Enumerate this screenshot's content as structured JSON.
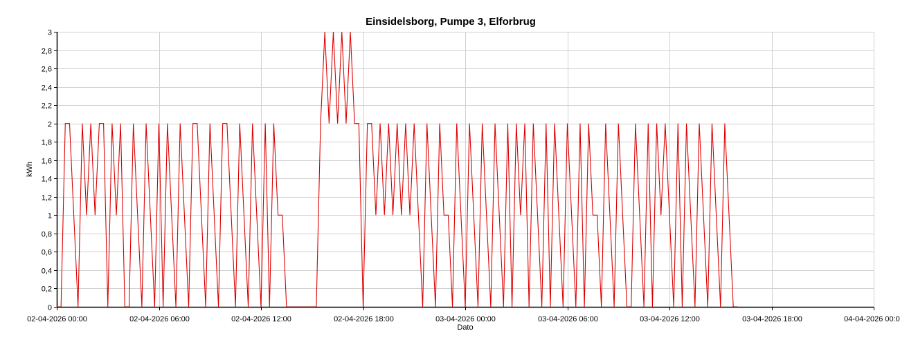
{
  "chart_data": {
    "type": "line",
    "title": "Einsidelsborg, Pumpe 3, Elforbrug",
    "xlabel": "Dato",
    "ylabel": "kWh",
    "ylim": [
      0,
      3
    ],
    "xlim": [
      "02-04-2026 00:00",
      "04-04-2026 00:00"
    ],
    "y_ticks": [
      "0",
      "0,2",
      "0,4",
      "0,6",
      "0,8",
      "1",
      "1,2",
      "1,4",
      "1,6",
      "1,8",
      "2",
      "2,2",
      "2,4",
      "2,6",
      "2,8",
      "3"
    ],
    "x_ticks": [
      "02-04-2026 00:00",
      "02-04-2026 06:00",
      "02-04-2026 12:00",
      "02-04-2026 18:00",
      "03-04-2026 00:00",
      "03-04-2026 06:00",
      "03-04-2026 12:00",
      "03-04-2026 18:00",
      "04-04-2026 00:00"
    ],
    "grid": true,
    "legend": "none",
    "colors": {
      "series": "#dd0000",
      "grid": "#d0d0d0",
      "axis": "#000000"
    },
    "series": [
      {
        "x": [
          "02-04-2026 00:00",
          "02-04-2026 00:15",
          "02-04-2026 00:30",
          "02-04-2026 00:45",
          "02-04-2026 01:00",
          "02-04-2026 01:15",
          "02-04-2026 01:30",
          "02-04-2026 01:45",
          "02-04-2026 02:00",
          "02-04-2026 02:15",
          "02-04-2026 02:30",
          "02-04-2026 02:45",
          "02-04-2026 03:00",
          "02-04-2026 03:15",
          "02-04-2026 03:30",
          "02-04-2026 03:45",
          "02-04-2026 04:00",
          "02-04-2026 04:15",
          "02-04-2026 04:30",
          "02-04-2026 04:45",
          "02-04-2026 05:00",
          "02-04-2026 05:15",
          "02-04-2026 05:30",
          "02-04-2026 05:45",
          "02-04-2026 06:00",
          "02-04-2026 06:15",
          "02-04-2026 06:30",
          "02-04-2026 06:45",
          "02-04-2026 07:00",
          "02-04-2026 07:15",
          "02-04-2026 07:30",
          "02-04-2026 07:45",
          "02-04-2026 08:00",
          "02-04-2026 08:15",
          "02-04-2026 08:30",
          "02-04-2026 08:45",
          "02-04-2026 09:00",
          "02-04-2026 09:15",
          "02-04-2026 09:30",
          "02-04-2026 09:45",
          "02-04-2026 10:00",
          "02-04-2026 10:15",
          "02-04-2026 10:30",
          "02-04-2026 10:45",
          "02-04-2026 11:00",
          "02-04-2026 11:15",
          "02-04-2026 11:30",
          "02-04-2026 11:45",
          "02-04-2026 12:00",
          "02-04-2026 12:15",
          "02-04-2026 12:30",
          "02-04-2026 12:45",
          "02-04-2026 13:00",
          "02-04-2026 13:15",
          "02-04-2026 13:30",
          "02-04-2026 13:45",
          "02-04-2026 14:00",
          "02-04-2026 14:15",
          "02-04-2026 14:30",
          "02-04-2026 14:45",
          "02-04-2026 15:00",
          "02-04-2026 15:15",
          "02-04-2026 15:30",
          "02-04-2026 15:45",
          "02-04-2026 16:00",
          "02-04-2026 16:15",
          "02-04-2026 16:30",
          "02-04-2026 16:45",
          "02-04-2026 17:00",
          "02-04-2026 17:15",
          "02-04-2026 17:30",
          "02-04-2026 17:45",
          "02-04-2026 18:00",
          "02-04-2026 18:15",
          "02-04-2026 18:30",
          "02-04-2026 18:45",
          "02-04-2026 19:00",
          "02-04-2026 19:15",
          "02-04-2026 19:30",
          "02-04-2026 19:45",
          "02-04-2026 20:00",
          "02-04-2026 20:15",
          "02-04-2026 20:30",
          "02-04-2026 20:45",
          "02-04-2026 21:00",
          "02-04-2026 21:15",
          "02-04-2026 21:30",
          "02-04-2026 21:45",
          "02-04-2026 22:00",
          "02-04-2026 22:15",
          "02-04-2026 22:30",
          "02-04-2026 22:45",
          "02-04-2026 23:00",
          "02-04-2026 23:15",
          "02-04-2026 23:30",
          "02-04-2026 23:45",
          "03-04-2026 00:00",
          "03-04-2026 00:15",
          "03-04-2026 00:30",
          "03-04-2026 00:45",
          "03-04-2026 01:00",
          "03-04-2026 01:15",
          "03-04-2026 01:30",
          "03-04-2026 01:45",
          "03-04-2026 02:00",
          "03-04-2026 02:15",
          "03-04-2026 02:30",
          "03-04-2026 02:45",
          "03-04-2026 03:00",
          "03-04-2026 03:15",
          "03-04-2026 03:30",
          "03-04-2026 03:45",
          "03-04-2026 04:00",
          "03-04-2026 04:15",
          "03-04-2026 04:30",
          "03-04-2026 04:45",
          "03-04-2026 05:00",
          "03-04-2026 05:15",
          "03-04-2026 05:30",
          "03-04-2026 05:45",
          "03-04-2026 06:00",
          "03-04-2026 06:15",
          "03-04-2026 06:30",
          "03-04-2026 06:45",
          "03-04-2026 07:00",
          "03-04-2026 07:15",
          "03-04-2026 07:30",
          "03-04-2026 07:45",
          "03-04-2026 08:00",
          "03-04-2026 08:15",
          "03-04-2026 08:30",
          "03-04-2026 08:45",
          "03-04-2026 09:00",
          "03-04-2026 09:15",
          "03-04-2026 09:30",
          "03-04-2026 09:45",
          "03-04-2026 10:00",
          "03-04-2026 10:15",
          "03-04-2026 10:30",
          "03-04-2026 10:45",
          "03-04-2026 11:00",
          "03-04-2026 11:15",
          "03-04-2026 11:30",
          "03-04-2026 11:45",
          "03-04-2026 12:00",
          "03-04-2026 12:15",
          "03-04-2026 12:30",
          "03-04-2026 12:45",
          "03-04-2026 13:00",
          "03-04-2026 13:15",
          "03-04-2026 13:30",
          "03-04-2026 13:45",
          "03-04-2026 14:00",
          "03-04-2026 14:15",
          "03-04-2026 14:30",
          "03-04-2026 14:45",
          "03-04-2026 15:00",
          "03-04-2026 15:15",
          "03-04-2026 15:30",
          "03-04-2026 15:45",
          "03-04-2026 16:00"
        ],
        "y": [
          0,
          0,
          2,
          2,
          1,
          0,
          2,
          1,
          2,
          1,
          2,
          2,
          0,
          2,
          1,
          2,
          0,
          0,
          2,
          1,
          0,
          2,
          1,
          0,
          2,
          0,
          2,
          1,
          0,
          2,
          1,
          0,
          2,
          2,
          1,
          0,
          2,
          1,
          0,
          2,
          2,
          1,
          0,
          2,
          1,
          0,
          2,
          1,
          0,
          2,
          0,
          2,
          1,
          1,
          0,
          0,
          0,
          0,
          0,
          0,
          0,
          0,
          2,
          3,
          2,
          3,
          2,
          3,
          2,
          3,
          2,
          2,
          0,
          2,
          2,
          1,
          2,
          1,
          2,
          1,
          2,
          1,
          2,
          1,
          2,
          1,
          0,
          2,
          1,
          0,
          2,
          1,
          1,
          0,
          2,
          1,
          0,
          2,
          1,
          0,
          2,
          1,
          0,
          2,
          1,
          0,
          2,
          0,
          2,
          1,
          2,
          0,
          2,
          1,
          0,
          2,
          0,
          2,
          1,
          0,
          2,
          1,
          0,
          2,
          0,
          2,
          1,
          1,
          0,
          2,
          1,
          0,
          2,
          1,
          0,
          0,
          2,
          1,
          0,
          2,
          0,
          2,
          1,
          2,
          1,
          0,
          2,
          0,
          2,
          1,
          0,
          2,
          1,
          0,
          2,
          1,
          0,
          2,
          1,
          0,
          0
        ]
      }
    ]
  }
}
